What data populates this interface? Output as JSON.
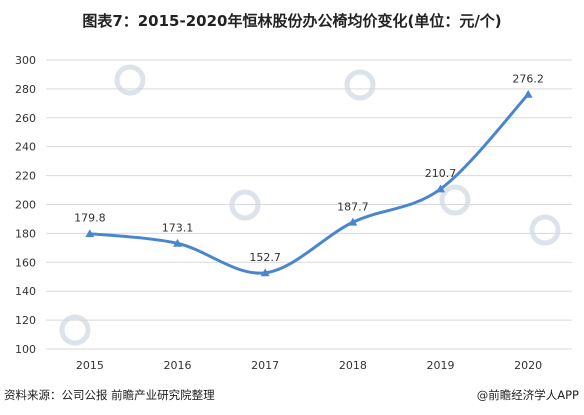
{
  "title": "图表7：2015-2020年恒林股份办公椅均价变化(单位：元/个)",
  "footer": {
    "source": "资料来源：公司公报 前瞻产业研究院整理",
    "brand": "@前瞻经济学人APP"
  },
  "colors": {
    "line": "#4a86cf",
    "grid": "#d9d9d9",
    "text": "#333333",
    "watermark": "#dde3ea"
  },
  "chart_data": {
    "type": "line",
    "categories": [
      "2015",
      "2016",
      "2017",
      "2018",
      "2019",
      "2020"
    ],
    "series": [
      {
        "values": [
          179.8,
          173.1,
          152.7,
          187.7,
          210.7,
          276.2
        ]
      }
    ],
    "data_labels": [
      "179.8",
      "173.1",
      "152.7",
      "187.7",
      "210.7",
      "276.2"
    ],
    "yticks": [
      100,
      120,
      140,
      160,
      180,
      200,
      220,
      240,
      260,
      280,
      300
    ],
    "ylim": [
      100,
      300
    ],
    "grid": true,
    "marker": "triangle",
    "smooth": true
  }
}
